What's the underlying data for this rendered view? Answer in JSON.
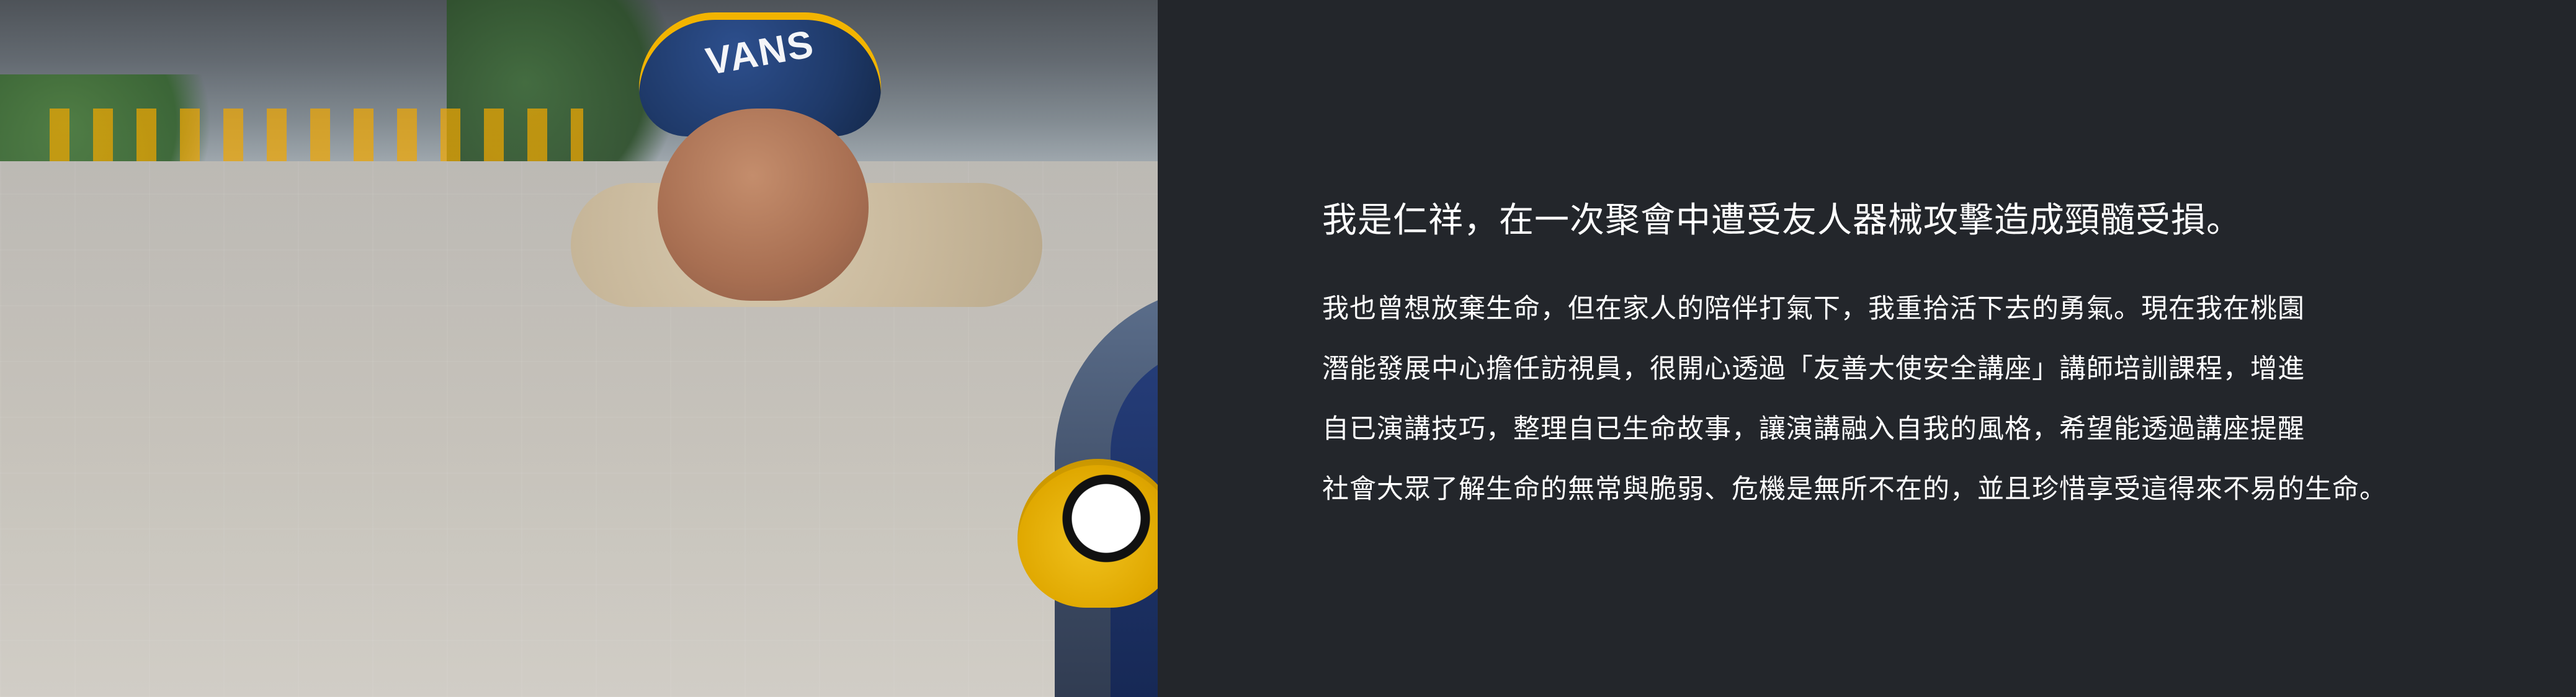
{
  "photo": {
    "cap_text": "VANS"
  },
  "panel": {
    "title": "我是仁祥，在一次聚會中遭受友人器械攻擊造成頸髓受損。",
    "paragraph_lines": [
      "我也曾想放棄生命，但在家人的陪伴打氣下，我重拾活下去的勇氣。現在我在桃園",
      "潛能發展中心擔任訪視員，很開心透過「友善大使安全講座」講師培訓課程，增進",
      "自已演講技巧，整理自已生命故事，讓演講融入自我的風格，希望能透過講座提醒",
      "社會大眾了解生命的無常與脆弱、危機是無所不在的，並且珍惜享受這得來不易的生命。"
    ]
  },
  "colors": {
    "panel_bg": "#23262b",
    "text": "#ffffff",
    "accent_yellow": "#f2b400",
    "cap_blue": "#1f3a6a"
  }
}
